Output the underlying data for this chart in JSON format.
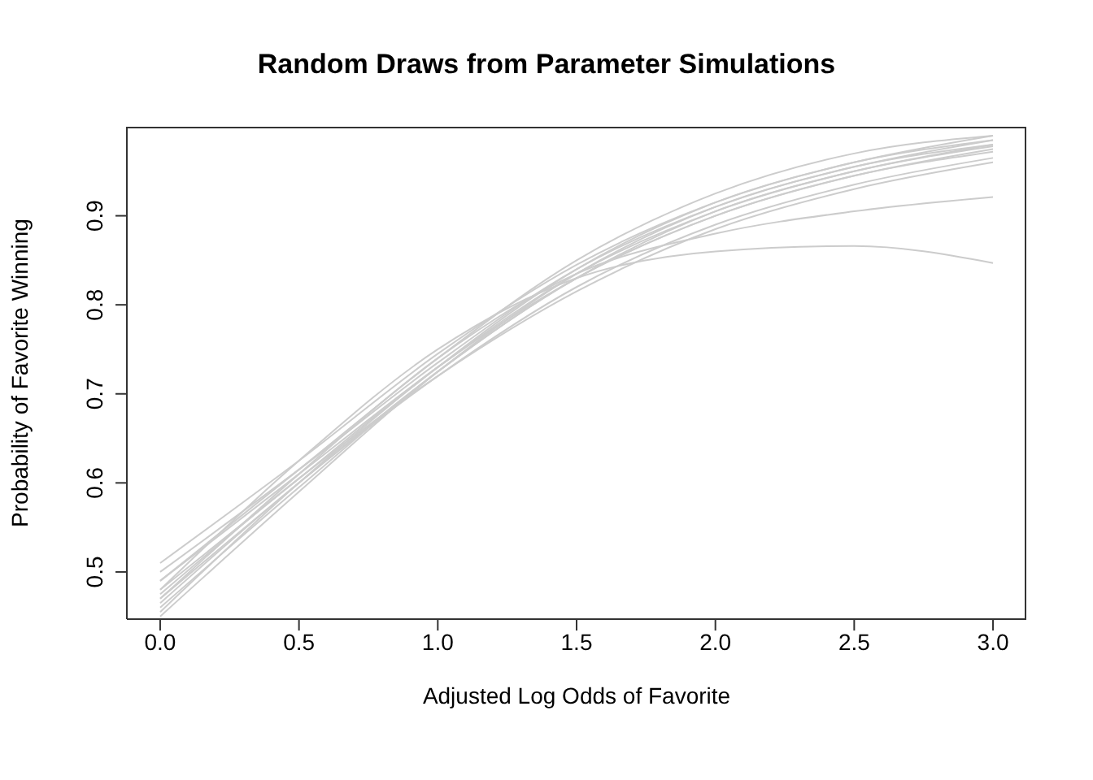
{
  "chart_data": {
    "type": "line",
    "title": "Random Draws from Parameter Simulations",
    "xlabel": "Adjusted Log Odds of Favorite",
    "ylabel": "Probability of Favorite Winning",
    "x": [
      0,
      0.5,
      1,
      1.5,
      2,
      2.5,
      3
    ],
    "xlim": [
      -0.12,
      3.12
    ],
    "ylim": [
      0.447,
      1.0
    ],
    "xticks": [
      {
        "value": 0,
        "label": "0.0"
      },
      {
        "value": 0.5,
        "label": "0.5"
      },
      {
        "value": 1,
        "label": "1.0"
      },
      {
        "value": 1.5,
        "label": "1.5"
      },
      {
        "value": 2,
        "label": "2.0"
      },
      {
        "value": 2.5,
        "label": "2.5"
      },
      {
        "value": 3,
        "label": "3.0"
      }
    ],
    "yticks": [
      0.5,
      0.6,
      0.7,
      0.8,
      0.9
    ],
    "marker": "none",
    "line_style": "solid",
    "series": [
      {
        "color": "#cccccc",
        "values": [
          0.51,
          0.625,
          0.745,
          0.845,
          0.915,
          0.96,
          0.985
        ]
      },
      {
        "color": "#cccccc",
        "values": [
          0.5,
          0.615,
          0.735,
          0.84,
          0.91,
          0.955,
          0.98
        ]
      },
      {
        "color": "#cccccc",
        "values": [
          0.49,
          0.61,
          0.73,
          0.835,
          0.905,
          0.95,
          0.978
        ]
      },
      {
        "color": "#cccccc",
        "values": [
          0.48,
          0.605,
          0.73,
          0.83,
          0.9,
          0.945,
          0.975
        ]
      },
      {
        "color": "#cccccc",
        "values": [
          0.47,
          0.6,
          0.725,
          0.83,
          0.9,
          0.945,
          0.972
        ]
      },
      {
        "color": "#cccccc",
        "values": [
          0.46,
          0.595,
          0.725,
          0.83,
          0.905,
          0.95,
          0.98
        ]
      },
      {
        "color": "#cccccc",
        "values": [
          0.45,
          0.59,
          0.725,
          0.835,
          0.91,
          0.955,
          0.985
        ]
      },
      {
        "color": "#cccccc",
        "values": [
          0.455,
          0.6,
          0.73,
          0.84,
          0.915,
          0.96,
          0.99
        ]
      },
      {
        "color": "#cccccc",
        "values": [
          0.465,
          0.6,
          0.72,
          0.82,
          0.89,
          0.935,
          0.965
        ]
      },
      {
        "color": "#cccccc",
        "values": [
          0.475,
          0.605,
          0.72,
          0.815,
          0.885,
          0.93,
          0.96
        ]
      },
      {
        "color": "#cccccc",
        "values": [
          0.49,
          0.615,
          0.74,
          0.85,
          0.925,
          0.97,
          0.99
        ]
      },
      {
        "color": "#cccccc",
        "values": [
          0.47,
          0.61,
          0.74,
          0.835,
          0.88,
          0.905,
          0.921
        ]
      },
      {
        "color": "#cccccc",
        "values": [
          0.48,
          0.625,
          0.75,
          0.83,
          0.86,
          0.866,
          0.847
        ]
      }
    ]
  }
}
